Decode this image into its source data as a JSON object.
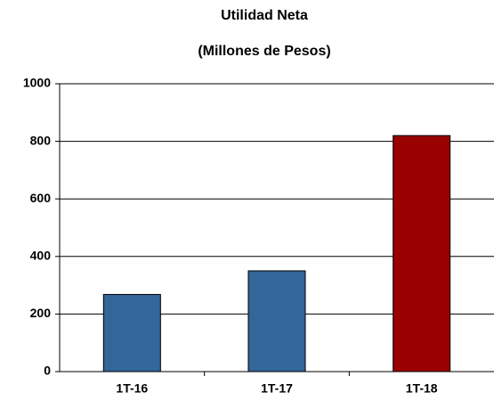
{
  "chart_data": {
    "type": "bar",
    "title": "Utilidad Neta",
    "subtitle": "(Millones de Pesos)",
    "categories": [
      "1T-16",
      "1T-17",
      "1T-18"
    ],
    "values": [
      268,
      350,
      820
    ],
    "colors": [
      "#336699",
      "#336699",
      "#990000"
    ],
    "ylim": [
      0,
      1000
    ],
    "yticks": [
      0,
      200,
      400,
      600,
      800,
      1000
    ],
    "grid": true
  }
}
